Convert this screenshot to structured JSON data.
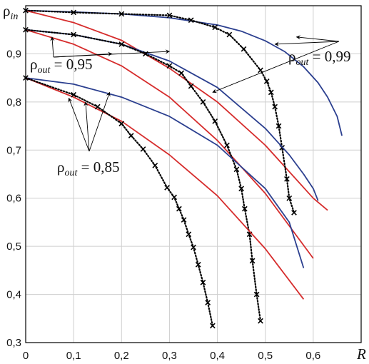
{
  "chart_data": {
    "type": "line",
    "title": "",
    "xlabel": "R",
    "ylabel": "ρ_in",
    "xlim": [
      0,
      0.7
    ],
    "ylim": [
      0.3,
      1.0
    ],
    "grid": true,
    "x_ticks": [
      "0",
      "0,1",
      "0,2",
      "0,3",
      "0,4",
      "0,5",
      "0,6"
    ],
    "y_ticks": [
      "0,3",
      "0,4",
      "0,5",
      "0,6",
      "0,7",
      "0,8",
      "0,9"
    ],
    "colors": {
      "blue": "#2b3f8f",
      "red": "#d62c2c",
      "dotted": "#000000"
    },
    "annotations": [
      {
        "base": "ρ",
        "sub": "out",
        "value": " = 0,99"
      },
      {
        "base": "ρ",
        "sub": "out",
        "value": " = 0,95"
      },
      {
        "base": "ρ",
        "sub": "out",
        "value": " = 0,85"
      }
    ],
    "series": [
      {
        "group": "0,99",
        "style": "blue",
        "x": [
          0,
          0.1,
          0.2,
          0.3,
          0.4,
          0.45,
          0.5,
          0.54,
          0.58,
          0.61,
          0.63,
          0.65,
          0.66
        ],
        "y": [
          0.99,
          0.987,
          0.983,
          0.975,
          0.96,
          0.947,
          0.927,
          0.905,
          0.873,
          0.84,
          0.81,
          0.77,
          0.73
        ]
      },
      {
        "group": "0,99",
        "style": "red",
        "x": [
          0,
          0.1,
          0.2,
          0.3,
          0.4,
          0.5,
          0.6,
          0.63
        ],
        "y": [
          0.99,
          0.965,
          0.928,
          0.87,
          0.8,
          0.71,
          0.6,
          0.575
        ]
      },
      {
        "group": "0,99",
        "style": "dotted",
        "x": [
          0,
          0.1,
          0.2,
          0.3,
          0.345,
          0.395,
          0.425,
          0.455,
          0.49,
          0.503,
          0.512,
          0.52,
          0.528,
          0.535,
          0.545,
          0.55,
          0.56
        ],
        "y": [
          0.99,
          0.986,
          0.983,
          0.98,
          0.97,
          0.955,
          0.94,
          0.91,
          0.866,
          0.843,
          0.82,
          0.79,
          0.75,
          0.705,
          0.64,
          0.6,
          0.57
        ]
      },
      {
        "group": "0,95",
        "style": "blue",
        "x": [
          0,
          0.1,
          0.2,
          0.3,
          0.4,
          0.5,
          0.55,
          0.58,
          0.6,
          0.61
        ],
        "y": [
          0.95,
          0.94,
          0.92,
          0.885,
          0.83,
          0.745,
          0.69,
          0.65,
          0.62,
          0.595
        ]
      },
      {
        "group": "0,95",
        "style": "red",
        "x": [
          0,
          0.1,
          0.2,
          0.3,
          0.4,
          0.5,
          0.6
        ],
        "y": [
          0.95,
          0.92,
          0.875,
          0.81,
          0.72,
          0.61,
          0.475
        ]
      },
      {
        "group": "0,95",
        "style": "dotted",
        "x": [
          0,
          0.1,
          0.2,
          0.25,
          0.3,
          0.325,
          0.345,
          0.37,
          0.395,
          0.42,
          0.44,
          0.45,
          0.457,
          0.467,
          0.473,
          0.482,
          0.49
        ],
        "y": [
          0.95,
          0.94,
          0.92,
          0.9,
          0.875,
          0.86,
          0.833,
          0.8,
          0.76,
          0.71,
          0.66,
          0.62,
          0.578,
          0.525,
          0.47,
          0.4,
          0.345
        ]
      },
      {
        "group": "0,85",
        "style": "blue",
        "x": [
          0,
          0.1,
          0.2,
          0.3,
          0.4,
          0.5,
          0.55,
          0.58
        ],
        "y": [
          0.85,
          0.837,
          0.81,
          0.77,
          0.71,
          0.62,
          0.55,
          0.455
        ]
      },
      {
        "group": "0,85",
        "style": "red",
        "x": [
          0,
          0.1,
          0.2,
          0.3,
          0.4,
          0.5,
          0.58
        ],
        "y": [
          0.85,
          0.81,
          0.76,
          0.69,
          0.605,
          0.495,
          0.39
        ]
      },
      {
        "group": "0,85",
        "style": "dotted",
        "x": [
          0,
          0.1,
          0.15,
          0.2,
          0.22,
          0.245,
          0.27,
          0.295,
          0.31,
          0.32,
          0.33,
          0.34,
          0.35,
          0.36,
          0.37,
          0.38,
          0.39
        ],
        "y": [
          0.85,
          0.815,
          0.79,
          0.755,
          0.73,
          0.702,
          0.668,
          0.622,
          0.602,
          0.578,
          0.555,
          0.525,
          0.498,
          0.462,
          0.425,
          0.383,
          0.335
        ]
      }
    ]
  }
}
